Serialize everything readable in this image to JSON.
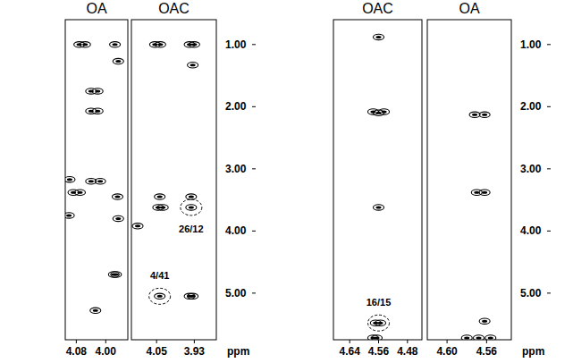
{
  "chart_data": [
    {
      "type": "scatter",
      "title": "OA",
      "xlim": [
        4.11,
        3.94
      ],
      "xticks": [
        4.08,
        {
          "value": 4,
          "label": "4.00"
        }
      ],
      "ylim": [
        0.6,
        5.75
      ],
      "series": [
        {
          "color": "#000000",
          "x": [
            4.072,
            4.056,
            3.975,
            3.966,
            4.04,
            4.022,
            4.04,
            4.022,
            4.098,
            4.04,
            4.015,
            4.088,
            4.07,
            3.968,
            4.1,
            3.966,
            3.972,
            3.978,
            4.028
          ],
          "values": [
            1.0,
            1.0,
            1.0,
            1.27,
            1.75,
            1.75,
            2.07,
            2.07,
            3.17,
            3.2,
            3.2,
            3.38,
            3.38,
            3.45,
            3.75,
            3.8,
            4.7,
            4.7,
            5.28
          ]
        }
      ]
    },
    {
      "type": "scatter",
      "title": "OAC",
      "xlabel": "ppm",
      "xlim": [
        4.13,
        3.86
      ],
      "xticks": [
        4.05,
        3.93
      ],
      "ylim": [
        0.6,
        5.75
      ],
      "yticks": [
        {
          "value": 1,
          "label": "1.00"
        },
        {
          "value": 2,
          "label": "2.00"
        },
        {
          "value": 3,
          "label": "3.00"
        },
        {
          "value": 4,
          "label": "4.00"
        },
        {
          "value": 5,
          "label": "5.00"
        }
      ],
      "series": [
        {
          "color": "#000000",
          "x": [
            4.055,
            4.038,
            3.945,
            3.93,
            3.935,
            4.04,
            3.94,
            4.045,
            4.03,
            3.94,
            4.04,
            3.945,
            3.935,
            4.11
          ],
          "values": [
            1.0,
            1.0,
            1.0,
            1.0,
            1.33,
            3.45,
            3.45,
            3.62,
            3.62,
            3.62,
            5.05,
            5.05,
            5.05,
            3.92
          ]
        }
      ],
      "annotations": [
        {
          "text": "26/12",
          "x": 3.94,
          "y": 3.62,
          "text_y": 3.97
        },
        {
          "text": "4/41",
          "x": 4.04,
          "y": 5.05,
          "text_y": 4.72
        }
      ]
    },
    {
      "type": "scatter",
      "title": "OAC",
      "xlim": [
        4.685,
        4.44
      ],
      "xticks": [
        4.64,
        4.56,
        4.48
      ],
      "ylim": [
        0.6,
        5.75
      ],
      "series": [
        {
          "color": "#000000",
          "x": [
            4.575,
            4.56,
            4.545,
            4.56,
            4.56,
            4.555,
            4.568,
            4.575,
            4.565
          ],
          "values": [
            2.08,
            2.1,
            2.08,
            0.88,
            3.62,
            5.48,
            5.48,
            5.72,
            5.72
          ]
        }
      ],
      "annotations": [
        {
          "text": "16/15",
          "x": 4.56,
          "y": 5.48,
          "text_y": 5.14
        }
      ]
    },
    {
      "type": "scatter",
      "title": "OA",
      "xlabel": "ppm",
      "xlim": [
        4.62,
        4.535
      ],
      "xticks": [
        {
          "value": 4.6,
          "label": "4.60"
        },
        4.56
      ],
      "ylim": [
        0.6,
        5.75
      ],
      "yticks": [
        {
          "value": 1,
          "label": "1.00"
        },
        {
          "value": 2,
          "label": "2.00"
        },
        {
          "value": 3,
          "label": "3.00"
        },
        {
          "value": 4,
          "label": "4.00"
        },
        {
          "value": 5,
          "label": "5.00"
        }
      ],
      "series": [
        {
          "color": "#000000",
          "x": [
            4.572,
            4.562,
            4.57,
            4.562,
            4.58,
            4.568,
            4.556,
            4.562
          ],
          "values": [
            2.13,
            2.13,
            3.38,
            3.38,
            5.72,
            5.72,
            5.72,
            5.45
          ]
        }
      ]
    }
  ]
}
